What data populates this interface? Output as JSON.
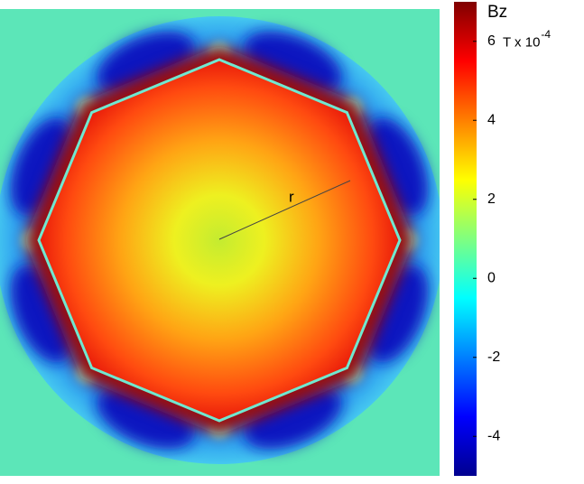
{
  "chart_data": {
    "type": "colormap",
    "colorbar": {
      "title": "Bz",
      "unit": "T x 10",
      "unit_exponent": "-4",
      "clim": [
        -5,
        7
      ],
      "ticks": [
        -4,
        -2,
        0,
        2,
        4,
        6
      ]
    },
    "annotations": [
      "r"
    ]
  }
}
